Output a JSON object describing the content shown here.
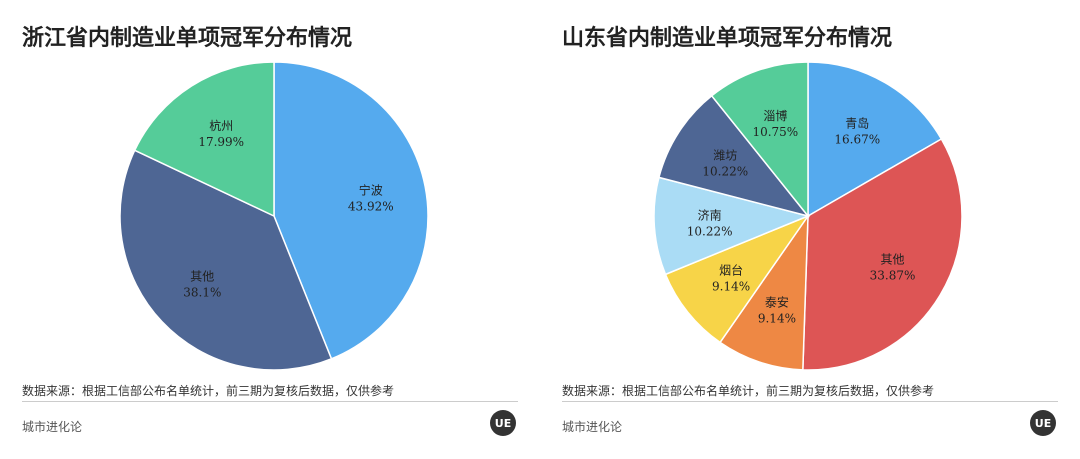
{
  "footer": {
    "source_text": "数据来源：根据工信部公布名单统计，前三期为复核后数据，仅供参考",
    "brand_text": "城市进化论",
    "logo_text": "UE"
  },
  "chart_data": [
    {
      "type": "pie",
      "title": "浙江省内制造业单项冠军分布情况",
      "slices": [
        {
          "label": "宁波",
          "value": 43.92,
          "display": "43.92%",
          "color": "#55aaee"
        },
        {
          "label": "其他",
          "value": 38.1,
          "display": "38.1%",
          "color": "#4e6694"
        },
        {
          "label": "杭州",
          "value": 17.99,
          "display": "17.99%",
          "color": "#55cc99"
        }
      ],
      "start_angle_deg": 0,
      "direction": "clockwise"
    },
    {
      "type": "pie",
      "title": "山东省内制造业单项冠军分布情况",
      "slices": [
        {
          "label": "青岛",
          "value": 16.67,
          "display": "16.67%",
          "color": "#55aaee"
        },
        {
          "label": "其他",
          "value": 33.87,
          "display": "33.87%",
          "color": "#dd5555"
        },
        {
          "label": "泰安",
          "value": 9.14,
          "display": "9.14%",
          "color": "#ee8844"
        },
        {
          "label": "烟台",
          "value": 9.14,
          "display": "9.14%",
          "color": "#f7d448"
        },
        {
          "label": "济南",
          "value": 10.22,
          "display": "10.22%",
          "color": "#aadcf5"
        },
        {
          "label": "潍坊",
          "value": 10.22,
          "display": "10.22%",
          "color": "#4e6694"
        },
        {
          "label": "淄博",
          "value": 10.75,
          "display": "10.75%",
          "color": "#55cc99"
        }
      ],
      "start_angle_deg": 0,
      "direction": "clockwise"
    }
  ]
}
